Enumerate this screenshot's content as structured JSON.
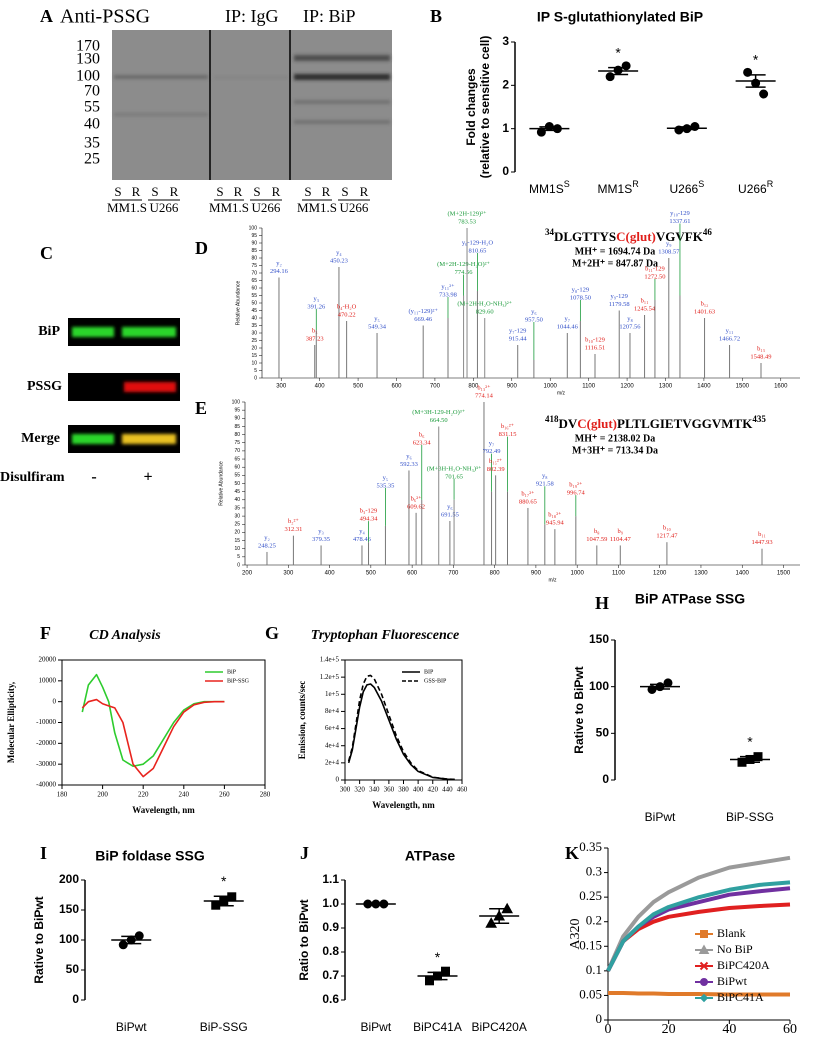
{
  "panel_labels": [
    "A",
    "B",
    "C",
    "D",
    "E",
    "F",
    "G",
    "H",
    "I",
    "J",
    "K"
  ],
  "blot_A": {
    "title": "Anti-PSSG",
    "groups": [
      "IP: IgG",
      "IP: BiP"
    ],
    "mw_markers": [
      170,
      130,
      100,
      70,
      55,
      40,
      35,
      25
    ],
    "lanes": [
      "S",
      "R",
      "S",
      "R"
    ],
    "cell_lines": [
      "MM1.S",
      "U266"
    ]
  },
  "blot_C": {
    "rows": [
      "BiP",
      "PSSG",
      "Merge"
    ],
    "treatment": "Disulfiram",
    "conditions": [
      "-",
      "+"
    ]
  },
  "chart_data": [
    {
      "type": "dot",
      "title": "IP S-glutathionylated BiP",
      "ylabel": [
        "Fold changes",
        "(relative to sensitive cell)"
      ],
      "categories": [
        "MM1S",
        "MM1S",
        "U266",
        "U266"
      ],
      "category_superscripts": [
        "S",
        "R",
        "S",
        "R"
      ],
      "points": [
        [
          0.92,
          1.05,
          1.0
        ],
        [
          2.2,
          2.35,
          2.45
        ],
        [
          0.97,
          1.0,
          1.05
        ],
        [
          2.3,
          2.05,
          1.8
        ]
      ],
      "values": [
        1.0,
        2.33,
        1.01,
        2.1
      ],
      "errors": [
        0.04,
        0.08,
        0.03,
        0.14
      ],
      "markers": [
        "circle",
        "circle",
        "circle",
        "circle"
      ],
      "ylim": [
        0,
        3
      ],
      "yticks": [
        0,
        1,
        2,
        3
      ],
      "annotations": [
        {
          "text": "*",
          "index": 1
        },
        {
          "text": "*",
          "index": 3
        }
      ]
    },
    {
      "type": "spectrum",
      "seq_start": "34",
      "seq_pre": "DLGTTYS",
      "seq_mod": "C(glut)",
      "seq_post": "VGVFK",
      "seq_end": "46",
      "mass_lines": [
        "MH⁺ = 1694.74 Da",
        "M+2H⁺ = 847.87 Da"
      ],
      "ylabel": "Relative Abundance",
      "xlabel": "m/z",
      "xlim": [
        250,
        1650
      ],
      "xticks": [
        300,
        400,
        500,
        600,
        700,
        800,
        900,
        1000,
        1100,
        1200,
        1300,
        1400,
        1500,
        1600
      ],
      "ylim": [
        0,
        100
      ],
      "yticks": [
        0,
        5,
        10,
        15,
        20,
        25,
        30,
        35,
        40,
        45,
        50,
        55,
        60,
        65,
        70,
        75,
        80,
        85,
        90,
        95,
        100
      ],
      "peaks": [
        {
          "label": "y₂",
          "mz": 294.16,
          "intensity": 67,
          "color": "#3350c8"
        },
        {
          "label": "b₃",
          "mz": 387.23,
          "intensity": 22,
          "color": "#e0201c"
        },
        {
          "label": "y₃",
          "mz": 391.26,
          "intensity": 32,
          "color": "#3350c8"
        },
        {
          "label": "y₄",
          "mz": 450.23,
          "intensity": 74,
          "color": "#3350c8"
        },
        {
          "label": "b₄-H₂O",
          "mz": 470.22,
          "intensity": 38,
          "color": "#e0201c"
        },
        {
          "label": "y₅",
          "mz": 549.34,
          "intensity": 30,
          "color": "#3350c8"
        },
        {
          "label": "(y₁₁-129)²⁺",
          "mz": 669.46,
          "intensity": 35,
          "color": "#3350c8"
        },
        {
          "label": "y₁₁²⁺",
          "mz": 733.98,
          "intensity": 40,
          "color": "#3350c8"
        },
        {
          "label": "(M+2H-129-H₂O)²⁺",
          "mz": 774.56,
          "intensity": 55,
          "color": "#1a9a3a"
        },
        {
          "label": "(M+2H-129)²⁺",
          "mz": 783.53,
          "intensity": 100,
          "color": "#1a9a3a"
        },
        {
          "label": "y₆-129-H₂O",
          "mz": 810.65,
          "intensity": 58,
          "color": "#3350c8"
        },
        {
          "label": "(M+2H-H₂O-NH₃)²⁺",
          "mz": 829.6,
          "mz_label": "829.60",
          "intensity": 40,
          "color": "#1a9a3a"
        },
        {
          "label": "y₇-129",
          "mz": 915.44,
          "intensity": 22,
          "color": "#3350c8"
        },
        {
          "label": "y₆",
          "mz": 957.5,
          "mz_label": "957.50",
          "intensity": 12,
          "color": "#3350c8"
        },
        {
          "label": "y₇",
          "mz": 1044.46,
          "intensity": 30,
          "color": "#3350c8"
        },
        {
          "label": "y₈-129",
          "mz": 1078.5,
          "mz_label": "1078.50",
          "intensity": 38,
          "color": "#3350c8"
        },
        {
          "label": "b₁₀-129",
          "mz": 1116.51,
          "intensity": 16,
          "color": "#e0201c"
        },
        {
          "label": "y₉-129",
          "mz": 1179.58,
          "intensity": 45,
          "color": "#3350c8"
        },
        {
          "label": "y₈",
          "mz": 1207.56,
          "intensity": 30,
          "color": "#3350c8"
        },
        {
          "label": "b₁₁",
          "mz": 1245.54,
          "intensity": 42,
          "color": "#e0201c"
        },
        {
          "label": "b₁₁-129",
          "mz": 1272.5,
          "mz_label": "1272.50",
          "intensity": 52,
          "color": "#e0201c"
        },
        {
          "label": "y₉",
          "mz": 1308.57,
          "intensity": 80,
          "color": "#3350c8"
        },
        {
          "label": "y₁₀-129",
          "mz": 1337.61,
          "intensity": 55,
          "color": "#3350c8"
        },
        {
          "label": "b₁₂",
          "mz": 1401.63,
          "intensity": 40,
          "color": "#e0201c"
        },
        {
          "label": "y₁₁",
          "mz": 1466.72,
          "intensity": 22,
          "color": "#3350c8"
        },
        {
          "label": "b₁₃",
          "mz": 1548.49,
          "intensity": 10,
          "color": "#e0201c"
        }
      ]
    },
    {
      "type": "spectrum",
      "seq_start": "418",
      "seq_pre": "DV",
      "seq_mod": "C(glut)",
      "seq_post": "PLTLGIETVGGVMTK",
      "seq_end": "435",
      "mass_lines": [
        "MH⁺ = 2138.02 Da",
        "M+3H⁺ = 713.34 Da"
      ],
      "ylabel": "Relative Abundance",
      "xlabel": "m/z",
      "xlim": [
        195,
        1540
      ],
      "xticks": [
        200,
        300,
        400,
        500,
        600,
        700,
        800,
        900,
        1000,
        1100,
        1200,
        1300,
        1400,
        1500
      ],
      "ylim": [
        0,
        100
      ],
      "yticks": [
        0,
        5,
        10,
        15,
        20,
        25,
        30,
        35,
        40,
        45,
        50,
        55,
        60,
        65,
        70,
        75,
        80,
        85,
        90,
        95,
        100
      ],
      "peaks": [
        {
          "label": "y₂",
          "mz": 248.25,
          "intensity": 8,
          "color": "#3350c8"
        },
        {
          "label": "b₂²⁺",
          "mz": 312.31,
          "intensity": 18,
          "color": "#e0201c"
        },
        {
          "label": "y₃",
          "mz": 379.35,
          "intensity": 12,
          "color": "#3350c8"
        },
        {
          "label": "y₄",
          "mz": 478.46,
          "intensity": 12,
          "color": "#3350c8"
        },
        {
          "label": "b₃-129",
          "mz": 494.34,
          "intensity": 14,
          "color": "#e0201c"
        },
        {
          "label": "y₅",
          "mz": 535.35,
          "intensity": 24,
          "color": "#3350c8"
        },
        {
          "label": "y₆",
          "mz": 592.33,
          "intensity": 58,
          "color": "#3350c8"
        },
        {
          "label": "b₆²⁺",
          "mz": 609.62,
          "intensity": 32,
          "color": "#e0201c"
        },
        {
          "label": "b₆",
          "mz": 623.34,
          "intensity": 40,
          "color": "#e0201c"
        },
        {
          "label": "(M+3H-129-H₂O)³⁺",
          "mz": 664.5,
          "mz_label": "664.50",
          "intensity": 85,
          "color": "#1a9a3a"
        },
        {
          "label": "y₆",
          "mz": 691.55,
          "intensity": 27,
          "color": "#3350c8"
        },
        {
          "label": "(M+3H-H₂O-NH₃)³⁺",
          "mz": 701.65,
          "intensity": 40,
          "color": "#1a9a3a"
        },
        {
          "label": "b₁₃²⁺",
          "mz": 774.14,
          "intensity": 100,
          "color": "#e0201c"
        },
        {
          "label": "y₇",
          "mz": 792.49,
          "intensity": 45,
          "color": "#3350c8"
        },
        {
          "label": "b₁₅²⁺",
          "mz": 802.39,
          "intensity": 55,
          "color": "#e0201c"
        },
        {
          "label": "b₁₆²⁺",
          "mz": 831.15,
          "intensity": 45,
          "color": "#e0201c"
        },
        {
          "label": "b₁₇²⁺",
          "mz": 880.65,
          "intensity": 35,
          "color": "#e0201c"
        },
        {
          "label": "y₈",
          "mz": 921.58,
          "intensity": 25,
          "color": "#3350c8"
        },
        {
          "label": "b₁₈²⁺",
          "mz": 945.94,
          "intensity": 22,
          "color": "#e0201c"
        },
        {
          "label": "b₁₉²⁺",
          "mz": 996.74,
          "intensity": 30,
          "color": "#e0201c"
        },
        {
          "label": "b₈",
          "mz": 1047.59,
          "intensity": 12,
          "color": "#e0201c"
        },
        {
          "label": "b₉",
          "mz": 1104.47,
          "intensity": 12,
          "color": "#e0201c"
        },
        {
          "label": "b₁₀",
          "mz": 1217.47,
          "intensity": 14,
          "color": "#e0201c"
        },
        {
          "label": "b₁₁",
          "mz": 1447.93,
          "intensity": 10,
          "color": "#e0201c"
        }
      ]
    },
    {
      "type": "line",
      "title": "CD Analysis",
      "ylabel": "Molecular Ellipticity,",
      "xlabel": "Wavelength, nm",
      "x": [
        190,
        193,
        197,
        200,
        203,
        206,
        210,
        215,
        220,
        225,
        230,
        235,
        240,
        245,
        250,
        255,
        260
      ],
      "series": [
        {
          "name": "BiP",
          "color": "#2ecc2e",
          "values": [
            -5000,
            8000,
            13000,
            7000,
            0,
            -15000,
            -28000,
            -31000,
            -30000,
            -26000,
            -18000,
            -10000,
            -4000,
            -1000,
            0,
            0,
            0
          ]
        },
        {
          "name": "BiP-SSG",
          "color": "#e8241e",
          "values": [
            -3000,
            0,
            1000,
            -1000,
            -2000,
            -3000,
            -10000,
            -30000,
            -36000,
            -32000,
            -22000,
            -12000,
            -5000,
            -1500,
            -300,
            0,
            0
          ]
        }
      ],
      "xlim": [
        180,
        280
      ],
      "xticks": [
        180,
        200,
        220,
        240,
        260,
        280
      ],
      "ylim": [
        -40000,
        20000
      ],
      "yticks": [
        20000,
        10000,
        0,
        -10000,
        -20000,
        -30000,
        -40000
      ],
      "legend": "upper right"
    },
    {
      "type": "line",
      "title": "Tryptophan Fluorescence",
      "ylabel": "Emission, counts/sec",
      "xlabel": "Wavelength, nm",
      "x": [
        305,
        310,
        315,
        320,
        325,
        330,
        335,
        340,
        350,
        360,
        370,
        380,
        390,
        400,
        420,
        440,
        450
      ],
      "series": [
        {
          "name": "BIP",
          "color": "#000000",
          "values": [
            20000,
            35000,
            60000,
            85000,
            103000,
            111000,
            112000,
            108000,
            92000,
            70000,
            48000,
            30000,
            18000,
            10000,
            3000,
            1000,
            500
          ]
        },
        {
          "name": "GSS-BIP",
          "color": "#000000",
          "dash": true,
          "values": [
            22000,
            38000,
            65000,
            93000,
            112000,
            121000,
            122000,
            118000,
            100000,
            76000,
            52000,
            33000,
            20000,
            11000,
            3300,
            1100,
            600
          ]
        }
      ],
      "xlim": [
        300,
        460
      ],
      "xticks": [
        300,
        320,
        340,
        360,
        380,
        400,
        420,
        440,
        460
      ],
      "ylim": [
        0,
        140000
      ],
      "yticks": [
        0,
        {
          "value": 20000,
          "label": "2e+4"
        },
        {
          "value": 40000,
          "label": "4e+4"
        },
        {
          "value": 60000,
          "label": "6e+4"
        },
        {
          "value": 80000,
          "label": "8e+4"
        },
        {
          "value": 100000,
          "label": "1e+5"
        },
        {
          "value": 120000,
          "label": "1.2e+5"
        },
        {
          "value": 140000,
          "label": "1.4e+5"
        }
      ],
      "legend": "upper right"
    },
    {
      "type": "dot",
      "title": "BiP ATPase SSG",
      "ylabel": [
        "Rative to BiPwt"
      ],
      "categories": [
        "BiPwt",
        "BiP-SSG"
      ],
      "points": [
        [
          97,
          100,
          104
        ],
        [
          19,
          22,
          25
        ]
      ],
      "values": [
        100,
        22
      ],
      "errors": [
        2.5,
        3
      ],
      "markers": [
        "circle",
        "square"
      ],
      "ylim": [
        0,
        150
      ],
      "yticks": [
        0,
        50,
        100,
        150
      ],
      "annotations": [
        {
          "text": "*",
          "index": 1
        }
      ]
    },
    {
      "type": "dot",
      "title": "BiP foldase SSG",
      "ylabel": [
        "Rative to BiPwt"
      ],
      "categories": [
        "BiPwt",
        "BiP-SSG"
      ],
      "points": [
        [
          92,
          100,
          107
        ],
        [
          158,
          165,
          172
        ]
      ],
      "values": [
        100,
        165
      ],
      "errors": [
        6,
        8
      ],
      "markers": [
        "circle",
        "square"
      ],
      "ylim": [
        0,
        200
      ],
      "yticks": [
        0,
        50,
        100,
        150,
        200
      ],
      "annotations": [
        {
          "text": "*",
          "index": 1
        }
      ]
    },
    {
      "type": "dot",
      "title": "ATPase",
      "ylabel": [
        "Ratio to BiPwt"
      ],
      "categories": [
        "BiPwt",
        "BiPC41A",
        "BiPC420A"
      ],
      "points": [
        [
          1.0,
          1.0,
          1.0
        ],
        [
          0.68,
          0.7,
          0.72
        ],
        [
          0.92,
          0.95,
          0.98
        ]
      ],
      "values": [
        1.0,
        0.7,
        0.95
      ],
      "errors": [
        0,
        0.015,
        0.03
      ],
      "markers": [
        "circle",
        "square",
        "triangle"
      ],
      "ylim": [
        0.6,
        1.1
      ],
      "yticks": [
        0.6,
        0.7,
        0.8,
        0.9,
        {
          "value": 1.0,
          "label": "1.0"
        },
        1.1
      ],
      "annotations": [
        {
          "text": "*",
          "index": 1
        }
      ]
    },
    {
      "type": "line",
      "ylabel": "A320",
      "x": [
        0,
        5,
        10,
        15,
        20,
        30,
        40,
        50,
        60
      ],
      "series": [
        {
          "name": "Blank",
          "color": "#e07a2a",
          "marker": "square",
          "values": [
            0.055,
            0.055,
            0.054,
            0.054,
            0.053,
            0.053,
            0.052,
            0.052,
            0.052
          ]
        },
        {
          "name": "No BiP",
          "color": "#9a9a9a",
          "marker": "triangle",
          "values": [
            0.1,
            0.17,
            0.21,
            0.24,
            0.26,
            0.29,
            0.31,
            0.32,
            0.33
          ]
        },
        {
          "name": "BiPC420A",
          "color": "#e02020",
          "marker": "x",
          "values": [
            0.1,
            0.16,
            0.185,
            0.2,
            0.21,
            0.22,
            0.228,
            0.232,
            0.235
          ]
        },
        {
          "name": "BiPwt",
          "color": "#7030a0",
          "marker": "circle",
          "values": [
            0.1,
            0.16,
            0.19,
            0.21,
            0.225,
            0.24,
            0.255,
            0.262,
            0.268
          ]
        },
        {
          "name": "BiPC41A",
          "color": "#30a0a0",
          "marker": "diamond",
          "values": [
            0.1,
            0.16,
            0.19,
            0.215,
            0.23,
            0.25,
            0.265,
            0.275,
            0.28
          ]
        }
      ],
      "xlim": [
        0,
        60
      ],
      "xticks": [
        0,
        20,
        40,
        60
      ],
      "ylim": [
        0,
        0.35
      ],
      "yticks": [
        0,
        0.05,
        0.1,
        0.15,
        0.2,
        0.25,
        0.3,
        0.35
      ],
      "legend": "center right"
    }
  ]
}
